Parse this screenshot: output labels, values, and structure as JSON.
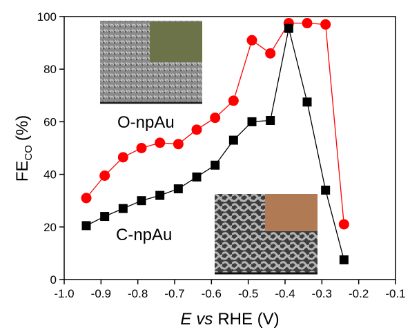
{
  "chart_data": {
    "type": "line",
    "x": [
      -0.94,
      -0.89,
      -0.84,
      -0.79,
      -0.74,
      -0.69,
      -0.64,
      -0.59,
      -0.54,
      -0.49,
      -0.44,
      -0.39,
      -0.34,
      -0.29,
      -0.24
    ],
    "series": [
      {
        "name": "O-npAu",
        "color": "#ff0000",
        "marker": "circle",
        "values": [
          31,
          39.5,
          46.5,
          50,
          52,
          51.5,
          57,
          61.5,
          68,
          91,
          86,
          97.5,
          97.5,
          97,
          21
        ]
      },
      {
        "name": "C-npAu",
        "color": "#000000",
        "marker": "square",
        "values": [
          20.5,
          24,
          27,
          30,
          32,
          34.5,
          39,
          43.5,
          53,
          60,
          60.5,
          95.5,
          67.5,
          34,
          7.5
        ]
      }
    ],
    "xlabel": {
      "variable": "E",
      "connector": "vs",
      "text": "RHE (V)"
    },
    "ylabel": {
      "main": "FE",
      "subscript": "CO",
      "unit": "(%)"
    },
    "xlim": [
      -1,
      -0.1
    ],
    "xticks": [
      {
        "value": -1,
        "label": "-1.0"
      },
      -0.9,
      -0.8,
      -0.7,
      -0.6,
      -0.5,
      -0.4,
      -0.3,
      -0.2,
      -0.1
    ],
    "ylim": [
      0,
      100
    ],
    "yticks": [
      0,
      20,
      40,
      60,
      80,
      100
    ]
  }
}
